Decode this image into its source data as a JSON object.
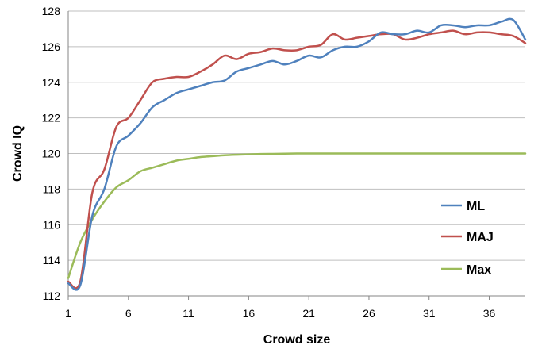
{
  "chart_data": {
    "type": "line",
    "title": "",
    "xlabel": "Crowd size",
    "ylabel": "Crowd IQ",
    "xlim": [
      1,
      39
    ],
    "ylim": [
      112,
      128
    ],
    "x_ticks": [
      1,
      6,
      11,
      16,
      21,
      26,
      31,
      36
    ],
    "y_ticks": [
      112,
      114,
      116,
      118,
      120,
      122,
      124,
      126,
      128
    ],
    "grid": "horizontal",
    "legend_position": "right",
    "x": [
      1,
      2,
      3,
      4,
      5,
      6,
      7,
      8,
      9,
      10,
      11,
      12,
      13,
      14,
      15,
      16,
      17,
      18,
      19,
      20,
      21,
      22,
      23,
      24,
      25,
      26,
      27,
      28,
      29,
      30,
      31,
      32,
      33,
      34,
      35,
      36,
      37,
      38,
      39
    ],
    "series": [
      {
        "name": "ML",
        "color": "#4f81bd",
        "values": [
          112.7,
          112.6,
          116.5,
          118.0,
          120.4,
          121.0,
          121.7,
          122.6,
          123.0,
          123.4,
          123.6,
          123.8,
          124.0,
          124.1,
          124.6,
          124.8,
          125.0,
          125.2,
          125.0,
          125.2,
          125.5,
          125.4,
          125.8,
          126.0,
          126.0,
          126.3,
          126.8,
          126.7,
          126.7,
          126.9,
          126.8,
          127.2,
          127.2,
          127.1,
          127.2,
          127.2,
          127.4,
          127.5,
          126.4
        ]
      },
      {
        "name": "MAJ",
        "color": "#c0504d",
        "values": [
          112.8,
          112.8,
          117.8,
          119.1,
          121.5,
          122.0,
          123.0,
          124.0,
          124.2,
          124.3,
          124.3,
          124.6,
          125.0,
          125.5,
          125.3,
          125.6,
          125.7,
          125.9,
          125.8,
          125.8,
          126.0,
          126.1,
          126.7,
          126.4,
          126.5,
          126.6,
          126.7,
          126.7,
          126.4,
          126.5,
          126.7,
          126.8,
          126.9,
          126.7,
          126.8,
          126.8,
          126.7,
          126.6,
          126.2
        ]
      },
      {
        "name": "Max",
        "color": "#9bbb59",
        "values": [
          113.0,
          115.0,
          116.3,
          117.3,
          118.1,
          118.5,
          119.0,
          119.2,
          119.4,
          119.6,
          119.7,
          119.8,
          119.85,
          119.9,
          119.93,
          119.95,
          119.97,
          119.98,
          119.99,
          120.0,
          120.0,
          120.0,
          120.0,
          120.0,
          120.0,
          120.0,
          120.0,
          120.0,
          120.0,
          120.0,
          120.0,
          120.0,
          120.0,
          120.0,
          120.0,
          120.0,
          120.0,
          120.0,
          120.0
        ]
      }
    ]
  }
}
